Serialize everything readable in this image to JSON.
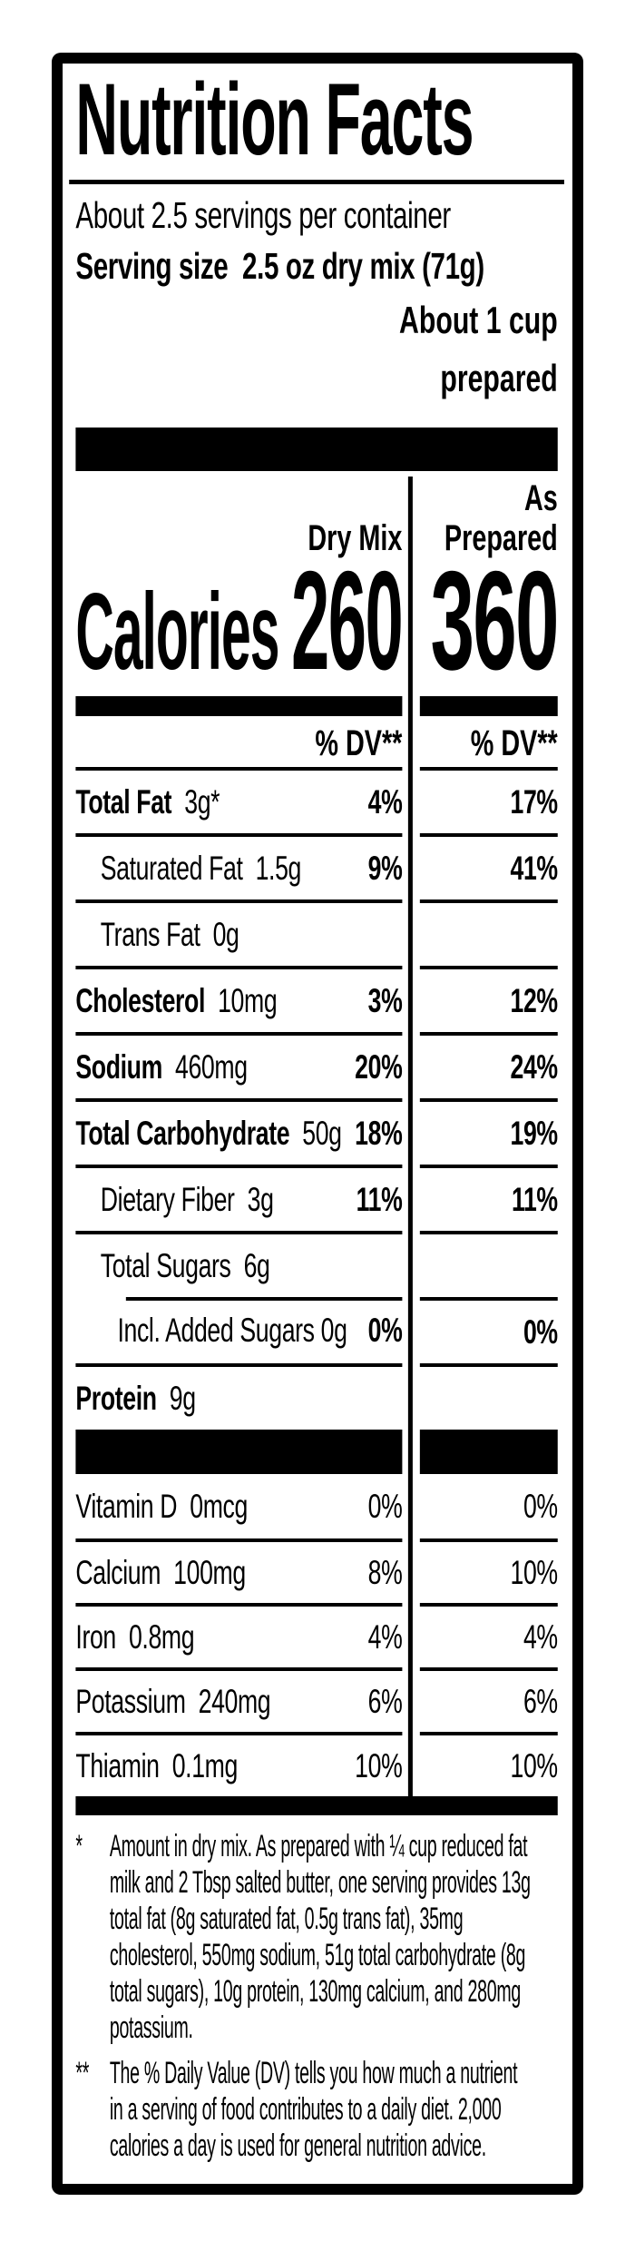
{
  "label": {
    "title": "Nutrition Facts",
    "serving": {
      "per_container": "About 2.5 servings per container",
      "size_line": "Serving size  2.5 oz dry mix (71g)",
      "note_line1": "About 1 cup",
      "note_line2": "prepared"
    },
    "columns": {
      "dry_mix": "Dry Mix",
      "as_prepared": "As\nPrepared"
    },
    "calories": {
      "label": "Calories",
      "dry_mix": "260",
      "as_prepared": "360"
    },
    "dv_header": "% DV**",
    "rows": [
      {
        "bold": "Total Fat",
        "rest": "  3g*",
        "dv1": "4%",
        "dv2": "17%"
      },
      {
        "bold": "",
        "rest": "Saturated Fat  1.5g",
        "dv1": "9%",
        "dv2": "41%"
      },
      {
        "bold": "",
        "rest": "Trans Fat  0g",
        "dv1": "",
        "dv2": ""
      },
      {
        "bold": "Cholesterol",
        "rest": "  10mg",
        "dv1": "3%",
        "dv2": "12%"
      },
      {
        "bold": "Sodium",
        "rest": "  460mg",
        "dv1": "20%",
        "dv2": "24%"
      },
      {
        "bold": "Total Carbohydrate",
        "rest": "  50g",
        "dv1": "18%",
        "dv2": "19%"
      },
      {
        "bold": "",
        "rest": "Dietary Fiber  3g",
        "dv1": "11%",
        "dv2": "11%"
      },
      {
        "bold": "",
        "rest": "Total Sugars  6g",
        "dv1": "",
        "dv2": ""
      },
      {
        "bold": "",
        "rest": "Incl. Added Sugars 0g",
        "dv1": "0%",
        "dv2": "0%"
      },
      {
        "bold": "Protein",
        "rest": "  9g",
        "dv1": "",
        "dv2": ""
      }
    ],
    "vitamins": [
      {
        "name": "Vitamin D  0mcg",
        "dv1": "0%",
        "dv2": "0%"
      },
      {
        "name": "Calcium  100mg",
        "dv1": "8%",
        "dv2": "10%"
      },
      {
        "name": "Iron  0.8mg",
        "dv1": "4%",
        "dv2": "4%"
      },
      {
        "name": "Potassium  240mg",
        "dv1": "6%",
        "dv2": "6%"
      },
      {
        "name": "Thiamin  0.1mg",
        "dv1": "10%",
        "dv2": "10%"
      }
    ],
    "footnotes": {
      "f1": {
        "marker": "*",
        "lines": [
          "Amount in dry mix. As prepared with ¼ cup reduced fat",
          "milk and 2 Tbsp salted butter, one serving provides 13g",
          "total fat (8g saturated fat, 0.5g trans fat), 35mg",
          "cholesterol, 550mg sodium, 51g total carbohydrate (8g",
          "total sugars), 10g protein, 130mg calcium, and 280mg",
          "potassium."
        ]
      },
      "f2": {
        "marker": "**",
        "lines": [
          "The % Daily Value (DV) tells you how much a nutrient",
          "in a serving of food contributes to a daily diet. 2,000",
          "calories a day is used for general nutrition advice."
        ]
      }
    }
  }
}
